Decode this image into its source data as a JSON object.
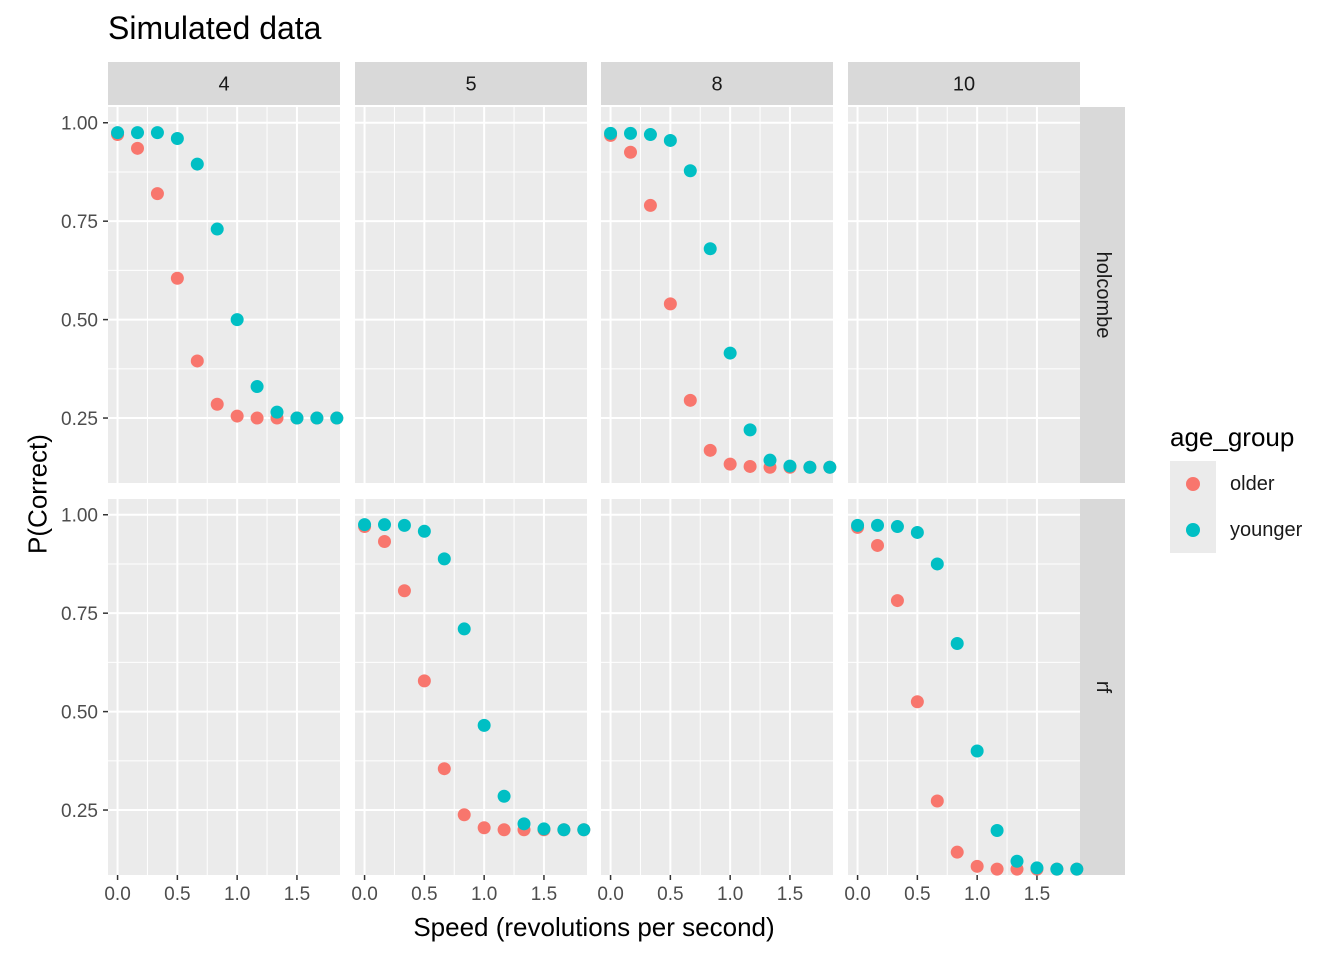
{
  "chart_data": {
    "type": "scatter",
    "title": "Simulated data",
    "xlabel": "Speed (revolutions per second)",
    "ylabel": "P(Correct)",
    "legend": {
      "title": "age_group",
      "placement": "right"
    },
    "facet_cols": [
      "4",
      "5",
      "8",
      "10"
    ],
    "facet_rows": [
      "holcombe",
      "rf"
    ],
    "xlim": [
      -0.08,
      1.86
    ],
    "ylim": [
      0.085,
      1.04
    ],
    "x_ticks": [
      0.0,
      0.5,
      1.0,
      1.5
    ],
    "x_tick_labels": [
      "0.0",
      "0.5",
      "1.0",
      "1.5"
    ],
    "y_ticks": [
      0.25,
      0.5,
      0.75,
      1.0
    ],
    "y_tick_labels": [
      "0.25",
      "0.50",
      "0.75",
      "1.00"
    ],
    "grid": true,
    "x": [
      0.0,
      0.1667,
      0.3333,
      0.5,
      0.6667,
      0.8333,
      1.0,
      1.1667,
      1.3333,
      1.5,
      1.6667,
      1.8333
    ],
    "series_colors": {
      "older": "#F8766D",
      "younger": "#00BFC4"
    },
    "panels": [
      {
        "row": "holcombe",
        "col": "4",
        "series": [
          {
            "name": "older",
            "values": [
              0.97,
              0.935,
              0.82,
              0.605,
              0.395,
              0.285,
              0.255,
              0.25,
              0.25,
              0.25,
              0.25,
              0.25
            ]
          },
          {
            "name": "younger",
            "values": [
              0.975,
              0.975,
              0.975,
              0.96,
              0.895,
              0.73,
              0.5,
              0.33,
              0.265,
              0.25,
              0.25,
              0.25
            ]
          }
        ]
      },
      {
        "row": "holcombe",
        "col": "8",
        "series": [
          {
            "name": "older",
            "values": [
              0.968,
              0.925,
              0.79,
              0.54,
              0.295,
              0.168,
              0.133,
              0.127,
              0.125,
              0.125,
              0.125,
              0.125
            ]
          },
          {
            "name": "younger",
            "values": [
              0.973,
              0.973,
              0.97,
              0.955,
              0.878,
              0.68,
              0.415,
              0.22,
              0.143,
              0.128,
              0.125,
              0.125
            ]
          }
        ]
      },
      {
        "row": "rf",
        "col": "5",
        "series": [
          {
            "name": "older",
            "values": [
              0.97,
              0.932,
              0.807,
              0.578,
              0.355,
              0.238,
              0.205,
              0.2,
              0.2,
              0.2,
              0.2,
              0.2
            ]
          },
          {
            "name": "younger",
            "values": [
              0.975,
              0.975,
              0.973,
              0.958,
              0.888,
              0.71,
              0.465,
              0.285,
              0.215,
              0.202,
              0.2,
              0.2
            ]
          }
        ]
      },
      {
        "row": "rf",
        "col": "10",
        "series": [
          {
            "name": "older",
            "values": [
              0.968,
              0.922,
              0.782,
              0.525,
              0.273,
              0.143,
              0.107,
              0.1,
              0.1,
              0.1,
              0.1,
              0.1
            ]
          },
          {
            "name": "younger",
            "values": [
              0.973,
              0.973,
              0.97,
              0.955,
              0.875,
              0.673,
              0.4,
              0.198,
              0.12,
              0.103,
              0.1,
              0.1
            ]
          }
        ]
      }
    ]
  }
}
